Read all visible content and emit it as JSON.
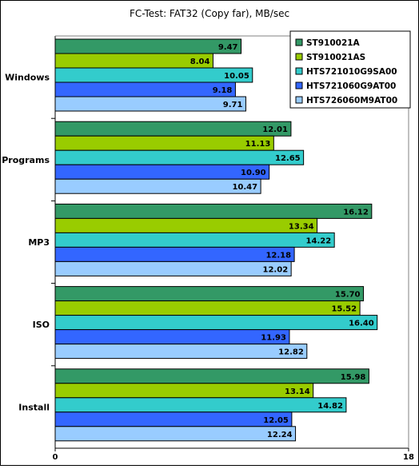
{
  "chart_data": {
    "type": "bar",
    "orientation": "horizontal",
    "title": "FC-Test: FAT32 (Copy far), MB/sec",
    "xlabel": "",
    "ylabel": "",
    "categories": [
      "Windows",
      "Programs",
      "MP3",
      "ISO",
      "Install"
    ],
    "xlim": [
      0,
      18
    ],
    "x_ticks": [
      "0",
      "18"
    ],
    "grid": false,
    "legend_position": "top-right",
    "series": [
      {
        "name": "ST910021A",
        "color": "#339966",
        "values": [
          9.47,
          12.01,
          16.12,
          15.7,
          15.98
        ],
        "labels": [
          "9.47",
          "12.01",
          "16.12",
          "15.70",
          "15.98"
        ]
      },
      {
        "name": "ST910021AS",
        "color": "#99cc00",
        "values": [
          8.04,
          11.13,
          13.34,
          15.52,
          13.14
        ],
        "labels": [
          "8.04",
          "11.13",
          "13.34",
          "15.52",
          "13.14"
        ]
      },
      {
        "name": "HTS721010G9SA00",
        "color": "#33cccc",
        "values": [
          10.05,
          12.65,
          14.22,
          16.4,
          14.82
        ],
        "labels": [
          "10.05",
          "12.65",
          "14.22",
          "16.40",
          "14.82"
        ]
      },
      {
        "name": "HTS721060G9AT00",
        "color": "#3366ff",
        "values": [
          9.18,
          10.9,
          12.18,
          11.93,
          12.05
        ],
        "labels": [
          "9.18",
          "10.90",
          "12.18",
          "11.93",
          "12.05"
        ]
      },
      {
        "name": "HTS726060M9AT00",
        "color": "#99ccff",
        "values": [
          9.71,
          10.47,
          12.02,
          12.82,
          12.24
        ],
        "labels": [
          "9.71",
          "10.47",
          "12.02",
          "12.82",
          "12.24"
        ]
      }
    ]
  }
}
